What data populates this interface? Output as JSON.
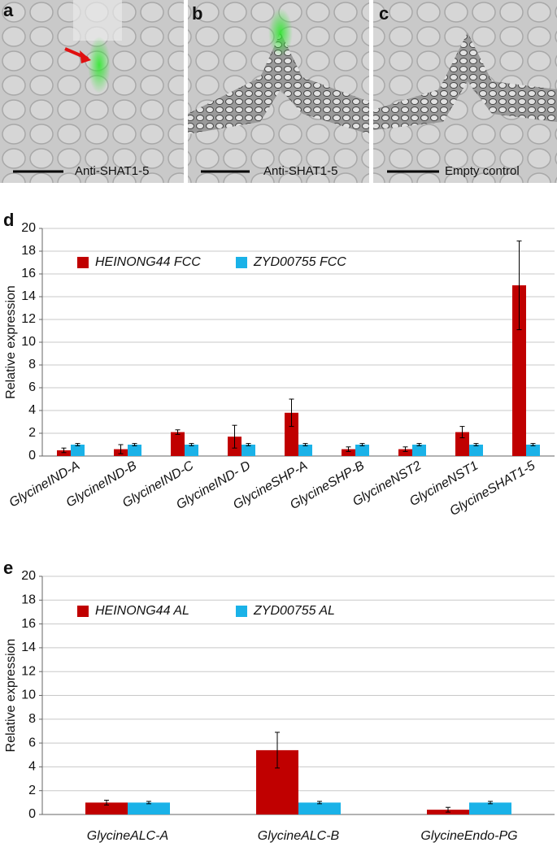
{
  "panels": [
    {
      "label": "a",
      "caption": "Anti-SHAT1-5"
    },
    {
      "label": "b",
      "caption": "Anti-SHAT1-5"
    },
    {
      "label": "c",
      "caption": "Empty control"
    }
  ],
  "chart_data": [
    {
      "type": "bar",
      "panel_label": "d",
      "ylabel": "Relative expression",
      "categories": [
        "GlycineIND-A",
        "GlycineIND-B",
        "GlycineIND-C",
        "GlycineIND- D",
        "GlycineSHP-A",
        "GlycineSHP-B",
        "GlycineNST2",
        "GlycineNST1",
        "GlycineSHAT1-5"
      ],
      "series": [
        {
          "name": "HEINONG44 FCC",
          "color": "#c00000",
          "values": [
            0.5,
            0.6,
            2.1,
            1.7,
            3.8,
            0.6,
            0.6,
            2.1,
            15.0
          ],
          "errors": [
            0.2,
            0.4,
            0.2,
            1.0,
            1.2,
            0.2,
            0.2,
            0.5,
            3.9
          ]
        },
        {
          "name": "ZYD00755 FCC",
          "color": "#1ab2e8",
          "values": [
            1,
            1,
            1,
            1,
            1,
            1,
            1,
            1,
            1
          ],
          "errors": [
            0.1,
            0.1,
            0.1,
            0.1,
            0.1,
            0.1,
            0.1,
            0.1,
            0.1
          ]
        }
      ],
      "ylim": [
        0,
        20
      ],
      "yticks": [
        0,
        2,
        4,
        6,
        8,
        10,
        12,
        14,
        16,
        18,
        20
      ],
      "grid": true,
      "legend": "top-left"
    },
    {
      "type": "bar",
      "panel_label": "e",
      "ylabel": "Relative expression",
      "categories": [
        "GlycineALC-A",
        "GlycineALC-B",
        "GlycineEndo-PG"
      ],
      "series": [
        {
          "name": "HEINONG44 AL",
          "color": "#c00000",
          "values": [
            1.0,
            5.4,
            0.4
          ],
          "errors": [
            0.2,
            1.5,
            0.2
          ]
        },
        {
          "name": "ZYD00755 AL",
          "color": "#1ab2e8",
          "values": [
            1,
            1,
            1
          ],
          "errors": [
            0.1,
            0.1,
            0.1
          ]
        }
      ],
      "ylim": [
        0,
        20
      ],
      "yticks": [
        0,
        2,
        4,
        6,
        8,
        10,
        12,
        14,
        16,
        18,
        20
      ],
      "grid": true,
      "legend": "top-left"
    }
  ]
}
